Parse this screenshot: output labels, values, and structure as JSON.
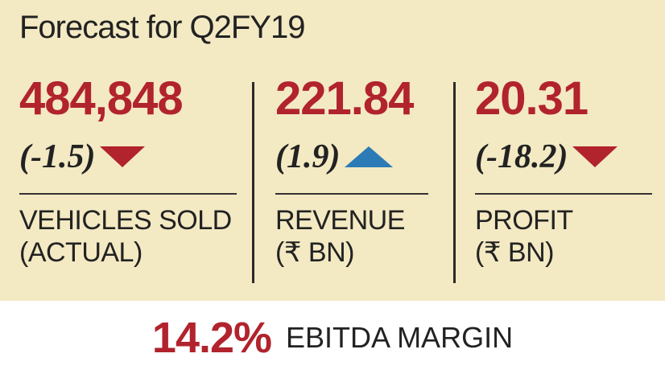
{
  "title": "Forecast for Q2FY19",
  "metrics": [
    {
      "value": "484,848",
      "change": "(-1.5)",
      "direction": "down",
      "label_line1": "VEHICLES SOLD",
      "label_line2": "(ACTUAL)"
    },
    {
      "value": "221.84",
      "change": "(1.9)",
      "direction": "up",
      "label_line1": "REVENUE",
      "label_line2": "(₹ BN)"
    },
    {
      "value": "20.31",
      "change": "(-18.2)",
      "direction": "down",
      "label_line1": "PROFIT",
      "label_line2": "(₹ BN)"
    }
  ],
  "footer": {
    "value": "14.2%",
    "label": "EBITDA MARGIN"
  },
  "colors": {
    "negative": "#b1232d",
    "positive": "#2c7bb6",
    "background": "#f3e9c3"
  }
}
